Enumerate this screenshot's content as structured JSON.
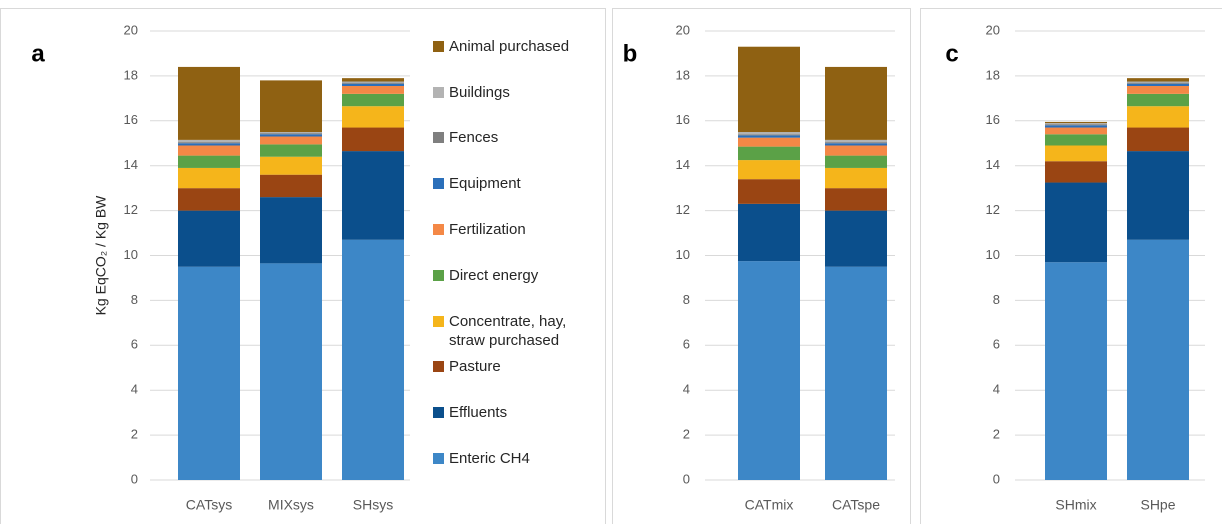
{
  "chart_data": [
    {
      "type": "bar",
      "stacked": true,
      "label": "a",
      "y_label": "Kg EqCO₂ / Kg BW",
      "categories": [
        "CATsys",
        "MIXsys",
        "SHsys"
      ],
      "ylim": [
        0,
        20
      ],
      "yticks": [
        0,
        2,
        4,
        6,
        8,
        10,
        12,
        14,
        16,
        18,
        20
      ],
      "grid": true,
      "legend": "right",
      "series": [
        {
          "name": "Enteric CH4",
          "color": "#3d87c7",
          "values": [
            9.5,
            9.65,
            10.7
          ]
        },
        {
          "name": "Effluents",
          "color": "#0b4f8c",
          "values": [
            2.5,
            2.95,
            3.95
          ]
        },
        {
          "name": "Pasture",
          "color": "#9a4513",
          "values": [
            1.0,
            1.0,
            1.05
          ]
        },
        {
          "name": "Concentrate, hay, straw purchased",
          "color": "#f5b51b",
          "values": [
            0.9,
            0.8,
            0.95
          ]
        },
        {
          "name": "Direct energy",
          "color": "#5ba147",
          "values": [
            0.55,
            0.55,
            0.55
          ]
        },
        {
          "name": "Fertilization",
          "color": "#f48846",
          "values": [
            0.45,
            0.35,
            0.35
          ]
        },
        {
          "name": "Equipment",
          "color": "#2b6fba",
          "values": [
            0.1,
            0.1,
            0.1
          ]
        },
        {
          "name": "Fences",
          "color": "#7f7f7f",
          "values": [
            0.05,
            0.05,
            0.05
          ]
        },
        {
          "name": "Buildings",
          "color": "#b3b3b3",
          "values": [
            0.1,
            0.05,
            0.05
          ]
        },
        {
          "name": "Animal purchased",
          "color": "#8f6112",
          "values": [
            3.25,
            2.3,
            0.15
          ]
        }
      ]
    },
    {
      "type": "bar",
      "stacked": true,
      "label": "b",
      "categories": [
        "CATmix",
        "CATspe"
      ],
      "ylim": [
        0,
        20
      ],
      "yticks": [
        0,
        2,
        4,
        6,
        8,
        10,
        12,
        14,
        16,
        18,
        20
      ],
      "grid": true,
      "series": [
        {
          "values": [
            9.75,
            9.5
          ]
        },
        {
          "values": [
            2.55,
            2.5
          ]
        },
        {
          "values": [
            1.1,
            1.0
          ]
        },
        {
          "values": [
            0.85,
            0.9
          ]
        },
        {
          "values": [
            0.6,
            0.55
          ]
        },
        {
          "values": [
            0.4,
            0.45
          ]
        },
        {
          "values": [
            0.1,
            0.1
          ]
        },
        {
          "values": [
            0.05,
            0.05
          ]
        },
        {
          "values": [
            0.1,
            0.1
          ]
        },
        {
          "values": [
            3.8,
            3.25
          ]
        }
      ]
    },
    {
      "type": "bar",
      "stacked": true,
      "label": "c",
      "categories": [
        "SHmix",
        "SHpe"
      ],
      "ylim": [
        0,
        20
      ],
      "yticks": [
        0,
        2,
        4,
        6,
        8,
        10,
        12,
        14,
        16,
        18,
        20
      ],
      "grid": true,
      "series": [
        {
          "values": [
            9.7,
            10.7
          ]
        },
        {
          "values": [
            3.55,
            3.95
          ]
        },
        {
          "values": [
            0.95,
            1.05
          ]
        },
        {
          "values": [
            0.7,
            0.95
          ]
        },
        {
          "values": [
            0.5,
            0.55
          ]
        },
        {
          "values": [
            0.3,
            0.35
          ]
        },
        {
          "values": [
            0.1,
            0.1
          ]
        },
        {
          "values": [
            0.05,
            0.05
          ]
        },
        {
          "values": [
            0.05,
            0.05
          ]
        },
        {
          "values": [
            0.05,
            0.15
          ]
        }
      ]
    }
  ]
}
